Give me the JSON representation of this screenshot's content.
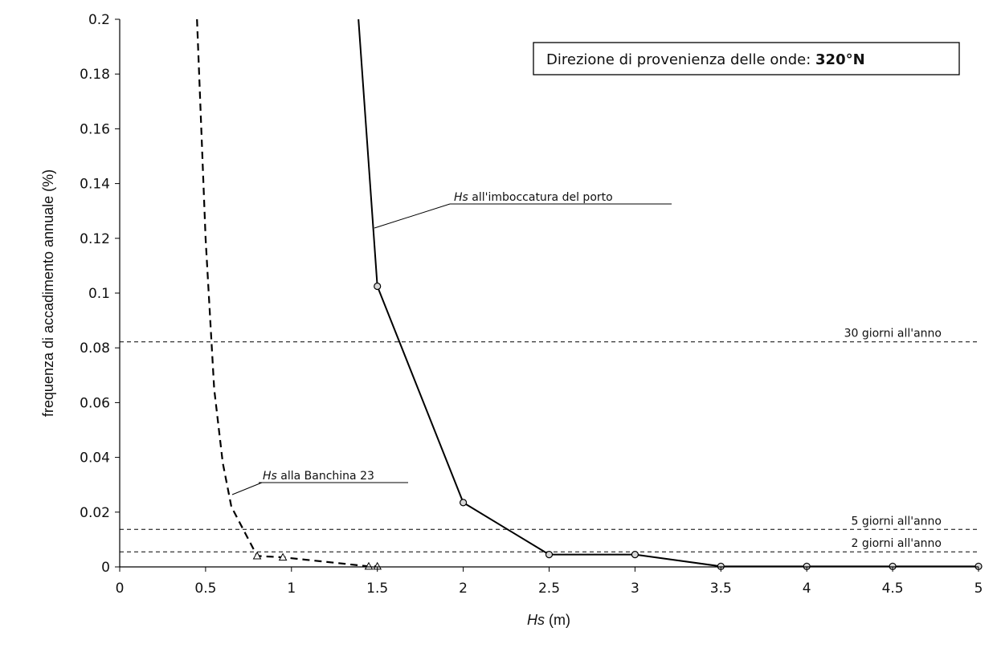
{
  "chart_data": {
    "type": "line",
    "title": "",
    "xlabel": {
      "italic": "Hs",
      "rest": " (m)"
    },
    "ylabel": "frequenza di accadimento annuale (%)",
    "xlim": [
      0,
      5
    ],
    "ylim": [
      0,
      0.2
    ],
    "x_ticks": [
      "0",
      "0.5",
      "1",
      "1.5",
      "2",
      "2.5",
      "3",
      "3.5",
      "4",
      "4.5",
      "5"
    ],
    "x_tick_values": [
      0,
      0.5,
      1,
      1.5,
      2,
      2.5,
      3,
      3.5,
      4,
      4.5,
      5
    ],
    "y_ticks": [
      "0",
      "0.02",
      "0.04",
      "0.06",
      "0.08",
      "0.1",
      "0.12",
      "0.14",
      "0.16",
      "0.18",
      "0.2"
    ],
    "y_tick_values": [
      0,
      0.02,
      0.04,
      0.06,
      0.08,
      0.1,
      0.12,
      0.14,
      0.16,
      0.18,
      0.2
    ],
    "grid": false,
    "direction_box": {
      "prefix": "Direzione di provenienza delle onde: ",
      "bold": "320°N"
    },
    "series": [
      {
        "name": "Hs all'imboccatura del porto",
        "label_italic": "Hs",
        "label_rest": " all'imboccatura del porto",
        "style": "solid",
        "color": "#000000",
        "marker": "circle",
        "x": [
          1.39,
          1.5,
          2.0,
          2.5,
          3.0,
          3.5,
          4.0,
          4.5,
          5.0
        ],
        "y": [
          0.2,
          0.1025,
          0.0235,
          0.0045,
          0.0045,
          0.0002,
          0.0002,
          0.0002,
          0.0002
        ],
        "marker_from_index": 1
      },
      {
        "name": "Hs alla Banchina 23",
        "label_italic": "Hs",
        "label_rest": " alla Banchina 23",
        "style": "dashed",
        "color": "#000000",
        "marker": "triangle",
        "x": [
          0.45,
          0.5,
          0.55,
          0.6,
          0.65,
          0.8,
          0.95,
          1.45,
          1.5
        ],
        "y": [
          0.2,
          0.12,
          0.065,
          0.038,
          0.022,
          0.004,
          0.0035,
          0.0002,
          0.0002
        ],
        "marker_from_index": 5
      }
    ],
    "reference_lines": [
      {
        "label": "30 giorni all'anno",
        "y": 0.0822
      },
      {
        "label": "5 giorni all'anno",
        "y": 0.0137
      },
      {
        "label": "2 giorni all'anno",
        "y": 0.0055
      }
    ]
  }
}
